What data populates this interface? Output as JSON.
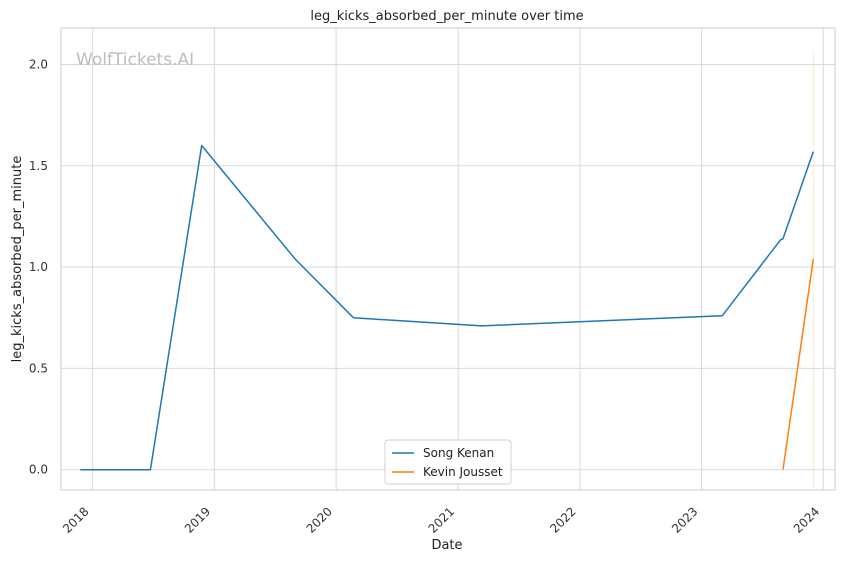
{
  "chart_data": {
    "type": "line",
    "title": "leg_kicks_absorbed_per_minute over time",
    "xlabel": "Date",
    "ylabel": "leg_kicks_absorbed_per_minute",
    "watermark": "WolfTickets.AI",
    "x_ticks": [
      "2018",
      "2019",
      "2020",
      "2021",
      "2022",
      "2023",
      "2024"
    ],
    "y_ticks": [
      "0.0",
      "0.5",
      "1.0",
      "1.5",
      "2.0"
    ],
    "xlim": [
      "2017-09-28",
      "2024-02-05"
    ],
    "ylim": [
      -0.1,
      2.18
    ],
    "grid": true,
    "legend_position": "bottom-center",
    "colors": {
      "Song Kenan": "#1f77b4",
      "Kevin Jousset": "#ff7f0e"
    },
    "series": [
      {
        "name": "Song Kenan",
        "color": "#1f77b4",
        "points": [
          {
            "x": "2017-11-25",
            "y": 0.0
          },
          {
            "x": "2018-06-23",
            "y": 0.0
          },
          {
            "x": "2018-11-24",
            "y": 1.6
          },
          {
            "x": "2019-08-31",
            "y": 1.04
          },
          {
            "x": "2020-02-22",
            "y": 0.75
          },
          {
            "x": "2021-03-13",
            "y": 0.71
          },
          {
            "x": "2023-03-04",
            "y": 0.76
          },
          {
            "x": "2023-08-26",
            "y": 1.135
          },
          {
            "x": "2023-09-02",
            "y": 1.14
          },
          {
            "x": "2023-12-02",
            "y": 1.57
          }
        ]
      },
      {
        "name": "Kevin Jousset",
        "color": "#ff7f0e",
        "points": [
          {
            "x": "2023-09-02",
            "y": 0.0
          },
          {
            "x": "2023-12-02",
            "y": 1.04
          }
        ]
      }
    ]
  }
}
